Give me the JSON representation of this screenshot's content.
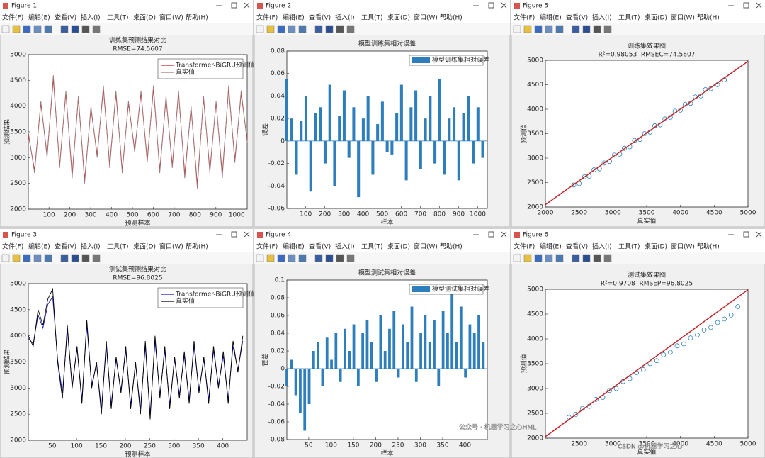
{
  "windows": [
    {
      "title": "Figure 1"
    },
    {
      "title": "Figure 2"
    },
    {
      "title": "Figure 5"
    },
    {
      "title": "Figure 3"
    },
    {
      "title": "Figure 4"
    },
    {
      "title": "Figure 6"
    }
  ],
  "menu": [
    "文件(F)",
    "编辑(E)",
    "查看(V)",
    "插入(I)",
    "工具(T)",
    "桌面(D)",
    "窗口(W)",
    "帮助(H)"
  ],
  "chart_data": [
    {
      "type": "line",
      "title": "训练集预测结果对比",
      "subtitle": "RMSE=74.5607",
      "x_label": "预测样本",
      "y_label": "预测结果",
      "x": [
        1,
        31,
        61,
        91,
        121,
        151,
        181,
        211,
        241,
        271,
        301,
        331,
        361,
        391,
        421,
        451,
        481,
        511,
        541,
        571,
        601,
        631,
        661,
        691,
        721,
        751,
        781,
        811,
        841,
        871,
        901,
        931,
        961,
        991,
        1021,
        1050
      ],
      "series": [
        {
          "name": "Transformer-BiGRU预测值",
          "color": "#c0282d",
          "values": [
            3450,
            2760,
            4050,
            3050,
            4520,
            2860,
            4250,
            2680,
            4150,
            2570,
            3950,
            3060,
            4330,
            2870,
            4240,
            2760,
            4050,
            3150,
            4240,
            2960,
            4330,
            2760,
            4150,
            2860,
            4240,
            2680,
            3960,
            2480,
            4150,
            2760,
            4060,
            2680,
            4330,
            2960,
            4240,
            3340
          ]
        },
        {
          "name": "真实值",
          "color": "#a07a7a",
          "values": [
            3500,
            2700,
            4100,
            3000,
            4600,
            2800,
            4300,
            2600,
            4200,
            2500,
            4000,
            3000,
            4400,
            2800,
            4300,
            2700,
            4100,
            3100,
            4300,
            2900,
            4400,
            2700,
            4200,
            2800,
            4300,
            2600,
            4000,
            2400,
            4200,
            2700,
            4100,
            2600,
            4400,
            2900,
            4300,
            3300
          ]
        }
      ],
      "xlim": [
        1,
        1050
      ],
      "xticks": [
        100,
        200,
        300,
        400,
        500,
        600,
        700,
        800,
        900,
        1000
      ],
      "ylim": [
        2000,
        5000
      ],
      "yticks": [
        2000,
        2500,
        3000,
        3500,
        4000,
        4500,
        5000
      ],
      "legend": "upper right"
    },
    {
      "type": "bar",
      "title": "模型训练集相对误差",
      "x_label": "样本",
      "y_label": "误差",
      "series_name": "模型训练集相对误差",
      "color": "#2e7ebc",
      "x": [
        1,
        26,
        51,
        76,
        101,
        126,
        151,
        176,
        201,
        226,
        251,
        276,
        301,
        326,
        351,
        376,
        401,
        426,
        451,
        476,
        501,
        526,
        551,
        576,
        601,
        626,
        651,
        676,
        701,
        726,
        751,
        776,
        801,
        826,
        851,
        876,
        901,
        926,
        951,
        976,
        1001,
        1026
      ],
      "values": [
        0.055,
        0.02,
        -0.03,
        0.018,
        0.04,
        -0.045,
        0.025,
        0.03,
        -0.02,
        0.05,
        -0.04,
        0.022,
        0.045,
        -0.015,
        0.03,
        -0.05,
        0.02,
        0.04,
        -0.03,
        0.015,
        0.035,
        -0.01,
        -0.012,
        0.025,
        0.05,
        -0.035,
        0.03,
        0.045,
        -0.025,
        0.02,
        0.04,
        -0.02,
        0.055,
        -0.03,
        0.02,
        0.03,
        -0.035,
        0.025,
        0.04,
        -0.02,
        0.03,
        -0.015
      ],
      "xlim": [
        1,
        1050
      ],
      "xticks": [
        100,
        200,
        300,
        400,
        500,
        600,
        700,
        800,
        900,
        1000
      ],
      "ylim": [
        -0.06,
        0.08
      ],
      "yticks": [
        -0.06,
        -0.04,
        -0.02,
        0,
        0.02,
        0.04,
        0.06,
        0.08
      ],
      "legend": "upper right"
    },
    {
      "type": "scatter",
      "title": "训练集效果图",
      "subtitle": "R²=0.98053  RMSEC=74.5607",
      "x_label": "真实值",
      "y_label": "预测值",
      "color": "#2a7fb8",
      "x": [
        2420,
        2500,
        2580,
        2650,
        2720,
        2800,
        2870,
        2950,
        3020,
        3100,
        3170,
        3250,
        3320,
        3400,
        3470,
        3550,
        3620,
        3700,
        3770,
        3850,
        3920,
        4000,
        4070,
        4150,
        4220,
        4300,
        4370,
        4450,
        4550,
        4650
      ],
      "values": [
        2450,
        2480,
        2620,
        2630,
        2760,
        2780,
        2900,
        2930,
        3060,
        3080,
        3200,
        3230,
        3360,
        3380,
        3500,
        3530,
        3660,
        3680,
        3800,
        3830,
        3960,
        3980,
        4100,
        4120,
        4250,
        4270,
        4400,
        4420,
        4500,
        4600
      ],
      "fit": {
        "color": "#c0282d",
        "x": [
          2000,
          5000
        ],
        "values": [
          2050,
          4980
        ]
      },
      "xlim": [
        2000,
        5000
      ],
      "xticks": [
        2000,
        2500,
        3000,
        3500,
        4000,
        4500,
        5000
      ],
      "ylim": [
        2000,
        5000
      ],
      "yticks": [
        2000,
        2500,
        3000,
        3500,
        4000,
        4500,
        5000
      ]
    },
    {
      "type": "line",
      "title": "测试集预测结果对比",
      "subtitle": "RMSE=96.8025",
      "x_label": "预测样本",
      "y_label": "预测结果",
      "x": [
        1,
        11,
        21,
        31,
        41,
        51,
        61,
        71,
        81,
        91,
        101,
        111,
        121,
        131,
        141,
        151,
        161,
        171,
        181,
        191,
        201,
        211,
        221,
        231,
        241,
        251,
        261,
        271,
        281,
        291,
        301,
        311,
        321,
        331,
        341,
        351,
        361,
        371,
        381,
        391,
        401,
        411,
        421,
        431,
        441
      ],
      "series": [
        {
          "name": "Transformer-BiGRU预测值",
          "color": "#1a1aaa",
          "values": [
            3950,
            3850,
            4400,
            4150,
            4600,
            4750,
            3550,
            2900,
            4100,
            3050,
            3750,
            2780,
            4200,
            3060,
            3450,
            2600,
            3800,
            2680,
            3550,
            2960,
            3720,
            2680,
            3450,
            2600,
            3800,
            2500,
            3900,
            2870,
            3720,
            2680,
            3550,
            2870,
            3620,
            2780,
            3800,
            2960,
            3550,
            2780,
            3720,
            3050,
            3620,
            2780,
            3800,
            3350,
            3900
          ]
        },
        {
          "name": "真实值",
          "color": "#000000",
          "values": [
            4000,
            3800,
            4500,
            4200,
            4700,
            4900,
            3500,
            2800,
            4200,
            3000,
            3800,
            2700,
            4300,
            3000,
            3500,
            2500,
            3900,
            2600,
            3600,
            2900,
            3800,
            2600,
            3500,
            2500,
            3900,
            2400,
            4000,
            2800,
            3800,
            2600,
            3600,
            2800,
            3700,
            2700,
            3900,
            2900,
            3600,
            2700,
            3800,
            3000,
            3700,
            2700,
            3900,
            3300,
            4000
          ]
        }
      ],
      "xlim": [
        1,
        450
      ],
      "xticks": [
        50,
        100,
        150,
        200,
        250,
        300,
        350,
        400
      ],
      "ylim": [
        2000,
        5000
      ],
      "yticks": [
        2000,
        2500,
        3000,
        3500,
        4000,
        4500,
        5000
      ],
      "legend": "upper right"
    },
    {
      "type": "bar",
      "title": "模型测试集相对误差",
      "x_label": "样本",
      "y_label": "误差",
      "series_name": "模型测试集相对误差",
      "color": "#2e7ebc",
      "x": [
        1,
        11,
        21,
        31,
        41,
        51,
        61,
        71,
        81,
        91,
        101,
        111,
        121,
        131,
        141,
        151,
        161,
        171,
        181,
        191,
        201,
        211,
        221,
        231,
        241,
        251,
        261,
        271,
        281,
        291,
        301,
        311,
        321,
        331,
        341,
        351,
        361,
        371,
        381,
        391,
        401,
        411,
        421,
        431,
        441
      ],
      "values": [
        -0.02,
        0.01,
        -0.03,
        -0.05,
        -0.07,
        -0.04,
        0.02,
        0.03,
        -0.02,
        0.035,
        0.01,
        0.04,
        -0.015,
        0.045,
        0.02,
        0.05,
        -0.02,
        0.04,
        0.055,
        0.03,
        -0.015,
        0.06,
        0.02,
        0.045,
        0.065,
        -0.01,
        0.05,
        0.03,
        0.07,
        -0.015,
        0.04,
        0.06,
        0.03,
        0.055,
        -0.02,
        0.065,
        0.04,
        0.085,
        0.03,
        0.07,
        -0.01,
        0.05,
        0.04,
        0.06,
        0.03
      ],
      "xlim": [
        1,
        450
      ],
      "xticks": [
        50,
        100,
        150,
        200,
        250,
        300,
        350,
        400
      ],
      "ylim": [
        -0.08,
        0.1
      ],
      "yticks": [
        -0.08,
        -0.06,
        -0.04,
        -0.02,
        0,
        0.02,
        0.04,
        0.06,
        0.08,
        0.1
      ],
      "legend": "upper right"
    },
    {
      "type": "scatter",
      "title": "测试集效果图",
      "subtitle": "R²=0.9708  RMSEP=96.8025",
      "x_label": "真实值",
      "y_label": "预测值",
      "color": "#2a7fb8",
      "x": [
        2350,
        2450,
        2550,
        2650,
        2750,
        2850,
        2950,
        3050,
        3150,
        3250,
        3350,
        3450,
        3550,
        3650,
        3750,
        3850,
        3950,
        4050,
        4150,
        4250,
        4350,
        4450,
        4550,
        4650,
        4750,
        4850
      ],
      "values": [
        2420,
        2480,
        2600,
        2640,
        2780,
        2820,
        2960,
        3000,
        3140,
        3200,
        3320,
        3380,
        3500,
        3560,
        3680,
        3730,
        3860,
        3900,
        4020,
        4080,
        4180,
        4230,
        4330,
        4400,
        4480,
        4650
      ],
      "fit": {
        "color": "#c0282d",
        "x": [
          2000,
          5000
        ],
        "values": [
          2030,
          4990
        ]
      },
      "xlim": [
        2000,
        5000
      ],
      "xticks": [
        2500,
        3000,
        3500,
        4000,
        4500,
        5000
      ],
      "ylim": [
        2000,
        5000
      ],
      "yticks": [
        2000,
        2500,
        3000,
        3500,
        4000,
        4500,
        5000
      ]
    }
  ],
  "watermark": [
    "公众号 · 机器学习之心HML",
    "CSDN @机器学习之心"
  ]
}
